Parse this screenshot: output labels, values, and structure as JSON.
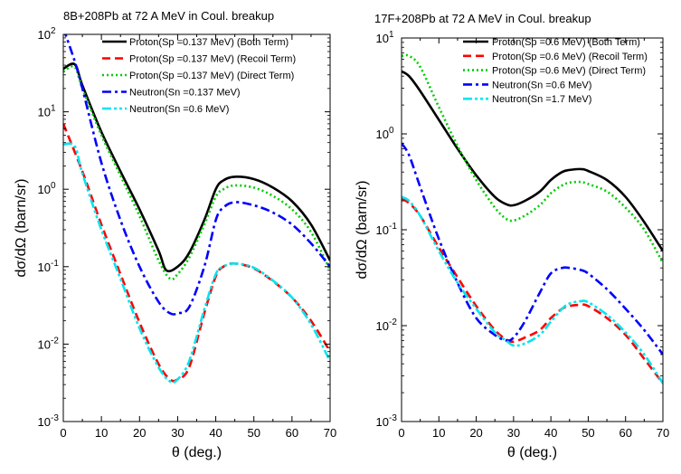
{
  "chart_data": [
    {
      "type": "line",
      "title": "8B+208Pb at 72 A MeV in Coul. breakup",
      "xlabel": "θ (deg.)",
      "ylabel": "dσ/dΩ (barn/sr)",
      "xlim": [
        0,
        70
      ],
      "ylim": [
        0.001,
        100
      ],
      "yscale": "log",
      "xticks": [
        "0",
        "10",
        "20",
        "30",
        "40",
        "50",
        "60",
        "70"
      ],
      "yticks": [
        {
          "base": "10",
          "exp": "-3",
          "value": 0.001
        },
        {
          "base": "10",
          "exp": "-2",
          "value": 0.01
        },
        {
          "base": "10",
          "exp": "-1",
          "value": 0.1
        },
        {
          "base": "10",
          "exp": "0",
          "value": 1
        },
        {
          "base": "10",
          "exp": "1",
          "value": 10
        },
        {
          "base": "10",
          "exp": "2",
          "value": 100
        }
      ],
      "legend_position": "top-right",
      "series": [
        {
          "name": "Proton(Sp =0.137 MeV) (Both Term)",
          "color": "#000000",
          "dash": "solid",
          "x": [
            0,
            3,
            5,
            10,
            15,
            20,
            25,
            27,
            30,
            33,
            37,
            40,
            42,
            45,
            50,
            55,
            60,
            65,
            70
          ],
          "y": [
            36,
            41,
            22,
            5.5,
            1.7,
            0.55,
            0.16,
            0.09,
            0.1,
            0.15,
            0.4,
            1.0,
            1.3,
            1.45,
            1.35,
            1.05,
            0.7,
            0.35,
            0.12
          ]
        },
        {
          "name": "Proton(Sp =0.137 MeV) (Recoil Term)",
          "color": "#ff0000",
          "dash": "dash",
          "x": [
            0,
            5,
            10,
            15,
            20,
            25,
            28,
            30,
            33,
            37,
            40,
            42,
            45,
            50,
            55,
            60,
            65,
            70
          ],
          "y": [
            7,
            1.7,
            0.35,
            0.08,
            0.019,
            0.0055,
            0.0035,
            0.0035,
            0.005,
            0.025,
            0.075,
            0.1,
            0.11,
            0.095,
            0.065,
            0.04,
            0.02,
            0.008
          ]
        },
        {
          "name": "Proton(Sp =0.137 MeV) (Direct Term)",
          "color": "#00cc00",
          "dash": "dot",
          "x": [
            0,
            3,
            5,
            10,
            15,
            20,
            25,
            28,
            30,
            33,
            37,
            40,
            42,
            45,
            50,
            55,
            60,
            65,
            70
          ],
          "y": [
            33,
            38,
            20,
            5,
            1.5,
            0.45,
            0.12,
            0.07,
            0.08,
            0.13,
            0.35,
            0.8,
            1.0,
            1.12,
            1.05,
            0.82,
            0.55,
            0.28,
            0.09
          ]
        },
        {
          "name": "Neutron(Sn =0.137 MeV)",
          "color": "#0000ff",
          "dash": "dashdot",
          "x": [
            0,
            3,
            5,
            10,
            15,
            20,
            25,
            28,
            30,
            33,
            37,
            40,
            42,
            45,
            50,
            55,
            60,
            65,
            70
          ],
          "y": [
            120,
            45,
            20,
            2.2,
            0.4,
            0.1,
            0.035,
            0.025,
            0.025,
            0.03,
            0.1,
            0.4,
            0.58,
            0.68,
            0.62,
            0.5,
            0.35,
            0.2,
            0.1
          ]
        },
        {
          "name": "Neutron(Sn =0.6 MeV)",
          "color": "#00e5ee",
          "dash": "dashdotdot",
          "x": [
            0,
            3,
            5,
            10,
            15,
            20,
            25,
            28,
            30,
            33,
            37,
            40,
            42,
            45,
            50,
            55,
            60,
            65,
            70
          ],
          "y": [
            3.8,
            3.6,
            1.6,
            0.3,
            0.07,
            0.016,
            0.005,
            0.0033,
            0.0035,
            0.006,
            0.028,
            0.08,
            0.1,
            0.11,
            0.097,
            0.066,
            0.04,
            0.018,
            0.006
          ]
        }
      ]
    },
    {
      "type": "line",
      "title": "17F+208Pb at 72 A MeV in Coul. breakup",
      "xlabel": "θ (deg.)",
      "ylabel": "dσ/dΩ (barn/sr)",
      "xlim": [
        0,
        70
      ],
      "ylim": [
        0.001,
        10
      ],
      "yscale": "log",
      "xticks": [
        "0",
        "10",
        "20",
        "30",
        "40",
        "50",
        "60",
        "70"
      ],
      "yticks": [
        {
          "base": "10",
          "exp": "-3",
          "value": 0.001
        },
        {
          "base": "10",
          "exp": "-2",
          "value": 0.01
        },
        {
          "base": "10",
          "exp": "-1",
          "value": 0.1
        },
        {
          "base": "10",
          "exp": "0",
          "value": 1
        },
        {
          "base": "10",
          "exp": "1",
          "value": 10
        }
      ],
      "legend_position": "top-right",
      "series": [
        {
          "name": "Proton(Sp =0.6 MeV) (Both Term)",
          "color": "#000000",
          "dash": "solid",
          "x": [
            0,
            2,
            5,
            10,
            15,
            20,
            25,
            28,
            30,
            33,
            37,
            40,
            43,
            45,
            48,
            50,
            55,
            60,
            65,
            70
          ],
          "y": [
            4.5,
            4.0,
            2.8,
            1.4,
            0.7,
            0.37,
            0.22,
            0.185,
            0.18,
            0.2,
            0.25,
            0.33,
            0.4,
            0.42,
            0.43,
            0.41,
            0.33,
            0.22,
            0.12,
            0.06
          ]
        },
        {
          "name": "Proton(Sp =0.6 MeV) (Recoil Term)",
          "color": "#ff0000",
          "dash": "dash",
          "x": [
            0,
            2,
            5,
            10,
            15,
            20,
            25,
            28,
            30,
            33,
            37,
            40,
            43,
            45,
            48,
            50,
            55,
            60,
            65,
            70
          ],
          "y": [
            0.21,
            0.19,
            0.14,
            0.065,
            0.032,
            0.016,
            0.009,
            0.0072,
            0.0068,
            0.0075,
            0.009,
            0.012,
            0.015,
            0.016,
            0.0165,
            0.016,
            0.012,
            0.008,
            0.0045,
            0.0025
          ]
        },
        {
          "name": "Proton(Sp =0.6 MeV) (Direct Term)",
          "color": "#00cc00",
          "dash": "dot",
          "x": [
            0,
            2,
            5,
            10,
            15,
            20,
            25,
            28,
            30,
            33,
            37,
            40,
            43,
            45,
            48,
            50,
            55,
            60,
            65,
            70
          ],
          "y": [
            6.5,
            6.5,
            5.0,
            1.9,
            0.75,
            0.33,
            0.17,
            0.13,
            0.125,
            0.14,
            0.18,
            0.24,
            0.29,
            0.31,
            0.315,
            0.3,
            0.25,
            0.17,
            0.1,
            0.045
          ]
        },
        {
          "name": "Neutron(Sn =0.6 MeV)",
          "color": "#0000ff",
          "dash": "dashdot",
          "x": [
            0,
            2,
            5,
            10,
            15,
            20,
            25,
            28,
            30,
            33,
            37,
            40,
            43,
            45,
            48,
            50,
            55,
            60,
            65,
            70
          ],
          "y": [
            0.8,
            0.6,
            0.28,
            0.08,
            0.028,
            0.012,
            0.008,
            0.007,
            0.0075,
            0.011,
            0.022,
            0.035,
            0.04,
            0.04,
            0.038,
            0.035,
            0.024,
            0.015,
            0.009,
            0.005
          ]
        },
        {
          "name": "Neutron(Sn =1.7 MeV)",
          "color": "#00e5ee",
          "dash": "dashdotdot",
          "x": [
            0,
            2,
            5,
            10,
            15,
            20,
            25,
            28,
            30,
            33,
            37,
            40,
            43,
            45,
            48,
            50,
            55,
            60,
            65,
            70
          ],
          "y": [
            0.22,
            0.2,
            0.14,
            0.06,
            0.028,
            0.015,
            0.0085,
            0.007,
            0.0062,
            0.0065,
            0.008,
            0.011,
            0.015,
            0.017,
            0.018,
            0.0175,
            0.013,
            0.0085,
            0.005,
            0.0025
          ]
        }
      ]
    }
  ]
}
